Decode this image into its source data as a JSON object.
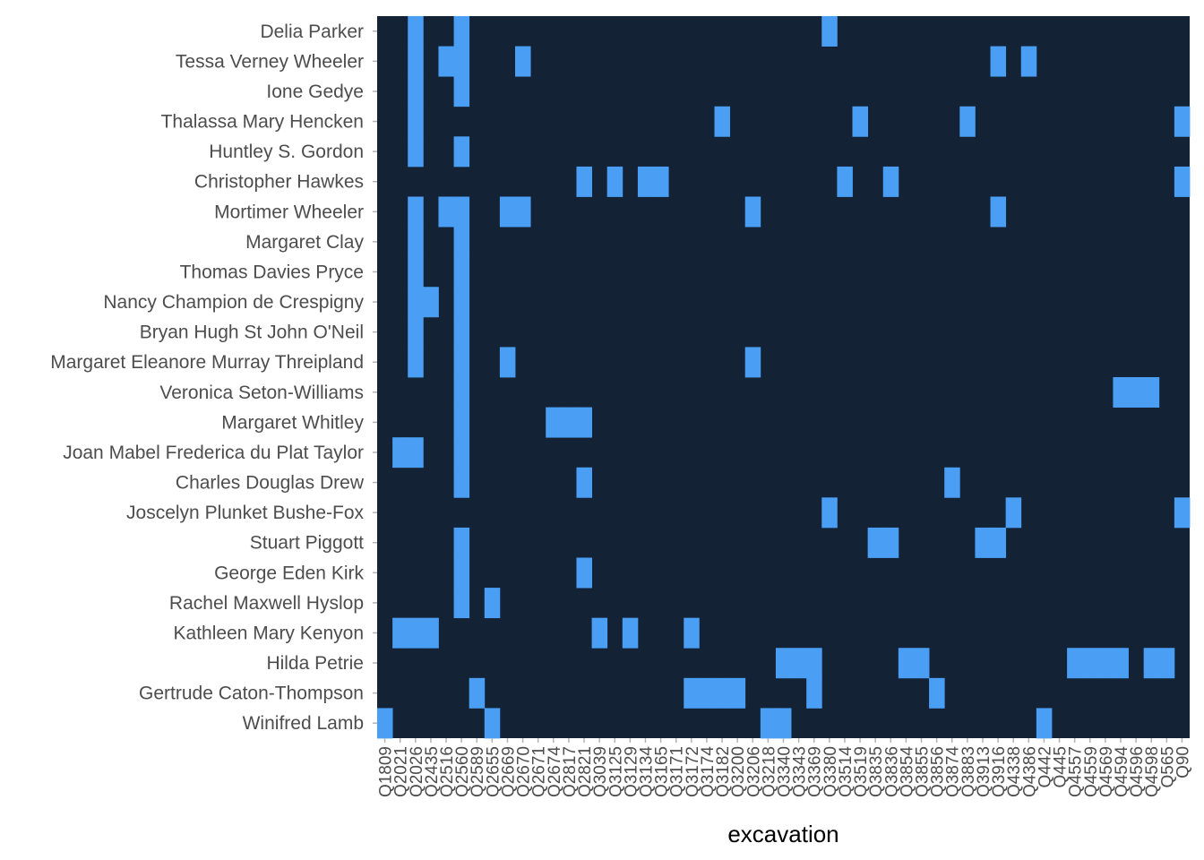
{
  "colors": {
    "panel": "#132235",
    "tile": "#4a9ff5",
    "tick": "#b3b3b3"
  },
  "chart_data": {
    "type": "heatmap",
    "xlabel": "excavation",
    "ylabel": "",
    "legend": "none",
    "x_categories": [
      "Q1809",
      "Q2021",
      "Q2026",
      "Q2435",
      "Q2516",
      "Q2560",
      "Q2589",
      "Q2655",
      "Q2669",
      "Q2670",
      "Q2671",
      "Q2674",
      "Q2817",
      "Q2821",
      "Q3039",
      "Q3125",
      "Q3129",
      "Q3134",
      "Q3165",
      "Q3171",
      "Q3172",
      "Q3174",
      "Q3182",
      "Q3200",
      "Q3206",
      "Q3218",
      "Q3340",
      "Q3343",
      "Q3369",
      "Q3380",
      "Q3514",
      "Q3519",
      "Q3835",
      "Q3836",
      "Q3854",
      "Q3855",
      "Q3856",
      "Q3874",
      "Q3883",
      "Q3913",
      "Q3916",
      "Q4338",
      "Q4386",
      "Q442",
      "Q445",
      "Q4557",
      "Q4559",
      "Q4569",
      "Q4594",
      "Q4596",
      "Q4598",
      "Q565",
      "Q90"
    ],
    "y_categories": [
      "Delia Parker",
      "Tessa Verney Wheeler",
      "Ione Gedye",
      "Thalassa Mary Hencken",
      "Huntley S. Gordon",
      "Christopher Hawkes",
      "Mortimer Wheeler",
      "Margaret Clay",
      "Thomas Davies Pryce",
      "Nancy Champion de Crespigny",
      "Bryan Hugh St John O'Neil",
      "Margaret Eleanore Murray Threipland",
      "Veronica Seton-Williams",
      "Margaret Whitley",
      "Joan Mabel Frederica du Plat Taylor",
      "Charles Douglas Drew",
      "Joscelyn Plunket Bushe-Fox",
      "Stuart Piggott",
      "George Eden Kirk",
      "Rachel Maxwell Hyslop",
      "Kathleen Mary Kenyon",
      "Hilda Petrie",
      "Gertrude Caton-Thompson",
      "Winifred Lamb"
    ],
    "tiles": [
      {
        "y": "Delia Parker",
        "x": [
          "Q2026",
          "Q2560",
          "Q3380"
        ]
      },
      {
        "y": "Tessa Verney Wheeler",
        "x": [
          "Q2026",
          "Q2516",
          "Q2560",
          "Q2670",
          "Q3916",
          "Q4386"
        ]
      },
      {
        "y": "Ione Gedye",
        "x": [
          "Q2026",
          "Q2560"
        ]
      },
      {
        "y": "Thalassa Mary Hencken",
        "x": [
          "Q2026",
          "Q3182",
          "Q3519",
          "Q3883",
          "Q90"
        ]
      },
      {
        "y": "Huntley S. Gordon",
        "x": [
          "Q2026",
          "Q2560"
        ]
      },
      {
        "y": "Christopher Hawkes",
        "x": [
          "Q2821",
          "Q3125",
          "Q3134",
          "Q3165",
          "Q3514",
          "Q3836",
          "Q90"
        ]
      },
      {
        "y": "Mortimer Wheeler",
        "x": [
          "Q2026",
          "Q2516",
          "Q2560",
          "Q2669",
          "Q2670",
          "Q3206",
          "Q3916"
        ]
      },
      {
        "y": "Margaret Clay",
        "x": [
          "Q2026",
          "Q2560"
        ]
      },
      {
        "y": "Thomas Davies Pryce",
        "x": [
          "Q2026",
          "Q2560"
        ]
      },
      {
        "y": "Nancy Champion de Crespigny",
        "x": [
          "Q2026",
          "Q2435",
          "Q2560"
        ]
      },
      {
        "y": "Bryan Hugh St John O'Neil",
        "x": [
          "Q2026",
          "Q2560"
        ]
      },
      {
        "y": "Margaret Eleanore Murray Threipland",
        "x": [
          "Q2026",
          "Q2560",
          "Q2669",
          "Q3206"
        ]
      },
      {
        "y": "Veronica Seton-Williams",
        "x": [
          "Q2560",
          "Q4594",
          "Q4596",
          "Q4598"
        ]
      },
      {
        "y": "Margaret Whitley",
        "x": [
          "Q2560",
          "Q2674",
          "Q2817",
          "Q2821"
        ]
      },
      {
        "y": "Joan Mabel Frederica du Plat Taylor",
        "x": [
          "Q2021",
          "Q2026",
          "Q2560"
        ]
      },
      {
        "y": "Charles Douglas Drew",
        "x": [
          "Q2560",
          "Q2821",
          "Q3874"
        ]
      },
      {
        "y": "Joscelyn Plunket Bushe-Fox",
        "x": [
          "Q3380",
          "Q4338",
          "Q90"
        ]
      },
      {
        "y": "Stuart Piggott",
        "x": [
          "Q2560",
          "Q3835",
          "Q3836",
          "Q3913",
          "Q3916"
        ]
      },
      {
        "y": "George Eden Kirk",
        "x": [
          "Q2560",
          "Q2821"
        ]
      },
      {
        "y": "Rachel Maxwell Hyslop",
        "x": [
          "Q2560",
          "Q2655"
        ]
      },
      {
        "y": "Kathleen Mary Kenyon",
        "x": [
          "Q2021",
          "Q2026",
          "Q2435",
          "Q3039",
          "Q3129",
          "Q3172"
        ]
      },
      {
        "y": "Hilda Petrie",
        "x": [
          "Q3340",
          "Q3343",
          "Q3369",
          "Q3854",
          "Q3855",
          "Q4557",
          "Q4559",
          "Q4569",
          "Q4594",
          "Q4598",
          "Q565"
        ]
      },
      {
        "y": "Gertrude Caton-Thompson",
        "x": [
          "Q2589",
          "Q3172",
          "Q3174",
          "Q3182",
          "Q3200",
          "Q3369",
          "Q3856"
        ]
      },
      {
        "y": "Winifred Lamb",
        "x": [
          "Q1809",
          "Q2655",
          "Q3218",
          "Q3340",
          "Q442"
        ]
      }
    ]
  }
}
